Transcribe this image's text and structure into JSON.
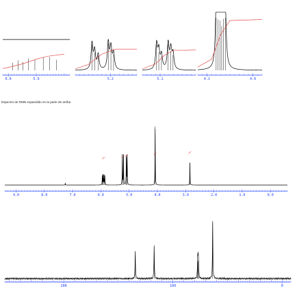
{
  "caption": "Espectro de RMN expandido en la parte de arriba",
  "colors": {
    "axis": "#1a3cff",
    "spectrum": "#000000",
    "integral": "#e0302a"
  },
  "chart_data": [
    {
      "id": "expansion-1",
      "type": "line",
      "title": "",
      "xlabel": "",
      "ylabel": "",
      "xlim": [
        6.02,
        5.78
      ],
      "ticks": [
        "6.0",
        "5.9"
      ],
      "peaks": [
        {
          "ppm": 5.985,
          "height": 0.26
        },
        {
          "ppm": 5.965,
          "height": 0.34
        },
        {
          "ppm": 5.948,
          "height": 0.28
        },
        {
          "ppm": 5.928,
          "height": 0.4
        },
        {
          "ppm": 5.905,
          "height": 0.36
        },
        {
          "ppm": 5.875,
          "height": 0.45
        },
        {
          "ppm": 5.852,
          "height": 0.46
        },
        {
          "ppm": 5.828,
          "height": 0.36
        }
      ],
      "integral": [
        [
          6.02,
          0.06
        ],
        [
          5.99,
          0.12
        ],
        [
          5.95,
          0.22
        ],
        [
          5.9,
          0.38
        ],
        [
          5.86,
          0.48
        ],
        [
          5.8,
          0.55
        ]
      ]
    },
    {
      "id": "expansion-2",
      "type": "line",
      "title": "",
      "xlabel": "",
      "ylabel": "",
      "xlim": [
        5.28,
        5.14
      ],
      "ticks": [
        "5.2"
      ],
      "peaks": [
        {
          "ppm": 5.242,
          "height": 0.88
        },
        {
          "ppm": 5.236,
          "height": 0.62
        },
        {
          "ppm": 5.228,
          "height": 0.5
        },
        {
          "ppm": 5.205,
          "height": 0.92
        },
        {
          "ppm": 5.199,
          "height": 0.72
        },
        {
          "ppm": 5.193,
          "height": 0.54
        }
      ],
      "integral": [
        [
          5.28,
          0.05
        ],
        [
          5.25,
          0.2
        ],
        [
          5.22,
          0.55
        ],
        [
          5.19,
          0.72
        ],
        [
          5.14,
          0.72
        ]
      ]
    },
    {
      "id": "expansion-3",
      "type": "line",
      "title": "",
      "xlabel": "",
      "ylabel": "",
      "xlim": [
        5.14,
        5.02
      ],
      "ticks": [
        "5.1"
      ],
      "peaks": [
        {
          "ppm": 5.108,
          "height": 0.86
        },
        {
          "ppm": 5.103,
          "height": 0.62
        },
        {
          "ppm": 5.097,
          "height": 0.48
        },
        {
          "ppm": 5.082,
          "height": 0.88
        },
        {
          "ppm": 5.076,
          "height": 0.66
        },
        {
          "ppm": 5.071,
          "height": 0.52
        }
      ],
      "integral": [
        [
          5.14,
          0.05
        ],
        [
          5.11,
          0.22
        ],
        [
          5.09,
          0.52
        ],
        [
          5.07,
          0.68
        ],
        [
          5.02,
          0.7
        ]
      ]
    },
    {
      "id": "expansion-4",
      "type": "line",
      "title": "",
      "xlabel": "",
      "ylabel": "",
      "xlim": [
        4.12,
        3.98
      ],
      "ticks": [
        "4.1",
        "4.0"
      ],
      "peaks": [
        {
          "ppm": 4.08,
          "height": 0.95
        },
        {
          "ppm": 4.076,
          "height": 0.92
        },
        {
          "ppm": 4.072,
          "height": 0.9
        },
        {
          "ppm": 4.068,
          "height": 0.8
        },
        {
          "ppm": 4.064,
          "height": 0.93
        },
        {
          "ppm": 4.06,
          "height": 0.95
        }
      ],
      "integral": [
        [
          4.12,
          0.06
        ],
        [
          4.09,
          0.2
        ],
        [
          4.07,
          0.65
        ],
        [
          4.05,
          0.9
        ],
        [
          3.98,
          0.92
        ]
      ]
    },
    {
      "id": "proton-spectrum",
      "type": "line",
      "title": "",
      "xlabel": "",
      "ylabel": "",
      "xlim": [
        9.4,
        -0.6
      ],
      "ticks": [
        "9.0",
        "8.0",
        "7.0",
        "6.0",
        "5.0",
        "4.0",
        "3.0",
        "2.0",
        "1.0",
        "0.0"
      ],
      "peaks": [
        {
          "ppm": 7.26,
          "height": 0.03
        },
        {
          "ppm": 5.95,
          "height": 0.16
        },
        {
          "ppm": 5.92,
          "height": 0.18
        },
        {
          "ppm": 5.89,
          "height": 0.17
        },
        {
          "ppm": 5.86,
          "height": 0.16
        },
        {
          "ppm": 5.24,
          "height": 0.52
        },
        {
          "ppm": 5.2,
          "height": 0.52
        },
        {
          "ppm": 5.1,
          "height": 0.5
        },
        {
          "ppm": 5.07,
          "height": 0.5
        },
        {
          "ppm": 4.08,
          "height": 1.0
        },
        {
          "ppm": 2.85,
          "height": 0.38
        }
      ],
      "integral_marks": [
        5.9,
        5.22,
        5.08,
        4.08,
        2.85
      ]
    },
    {
      "id": "carbon-spectrum",
      "type": "line",
      "title": "",
      "xlabel": "",
      "ylabel": "",
      "xlim": [
        254,
        -8
      ],
      "ticks": [
        "200",
        "100",
        "0"
      ],
      "peaks": [
        {
          "ppm": 134.5,
          "height": 0.46
        },
        {
          "ppm": 117.2,
          "height": 0.56
        },
        {
          "ppm": 77.4,
          "height": 0.28
        },
        {
          "ppm": 77.0,
          "height": 0.3
        },
        {
          "ppm": 76.6,
          "height": 0.28
        },
        {
          "ppm": 63.6,
          "height": 0.96
        }
      ]
    }
  ]
}
